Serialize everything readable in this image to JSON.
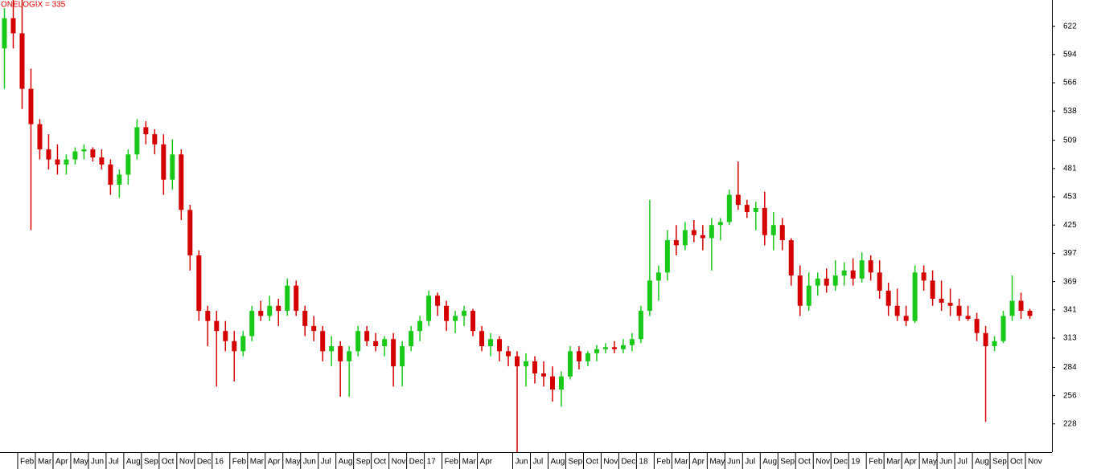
{
  "chart_data": {
    "type": "candlestick",
    "title": "ONELOGIX = 335",
    "ylim": [
      200,
      648
    ],
    "yticks": [
      228,
      256,
      284,
      313,
      341,
      369,
      397,
      425,
      453,
      481,
      509,
      538,
      566,
      594,
      622
    ],
    "up_color": "#19c919",
    "down_color": "#d40000",
    "categories": [
      null,
      null,
      "Feb",
      null,
      "Mar",
      null,
      "Apr",
      null,
      "May",
      null,
      "Jun",
      null,
      "Jul",
      null,
      "Aug",
      null,
      "Sep",
      null,
      "Oct",
      null,
      "Nov",
      null,
      "Dec",
      null,
      "16",
      null,
      "Feb",
      null,
      "Mar",
      null,
      "Apr",
      null,
      "May",
      null,
      "Jun",
      null,
      "Jul",
      null,
      "Aug",
      null,
      "Sep",
      null,
      "Oct",
      null,
      "Nov",
      null,
      "Dec",
      null,
      "17",
      null,
      "Feb",
      null,
      "Mar",
      null,
      "Apr",
      null,
      null,
      null,
      "Jun",
      null,
      "Jul",
      null,
      "Aug",
      null,
      "Sep",
      null,
      "Oct",
      null,
      "Nov",
      null,
      "Dec",
      null,
      "18",
      null,
      "Feb",
      null,
      "Mar",
      null,
      "Apr",
      null,
      "May",
      null,
      "Jun",
      null,
      "Jul",
      null,
      "Aug",
      null,
      "Sep",
      null,
      "Oct",
      null,
      "Nov",
      null,
      "Dec",
      null,
      "19",
      null,
      "Feb",
      null,
      "Mar",
      null,
      "Apr",
      null,
      "May",
      null,
      "Jun",
      null,
      "Jul",
      null,
      "Aug",
      null,
      "Sep",
      null,
      "Oct",
      null,
      "Nov"
    ],
    "ohlc": [
      [
        600,
        640,
        560,
        630
      ],
      [
        630,
        648,
        600,
        615
      ],
      [
        615,
        648,
        540,
        560
      ],
      [
        560,
        580,
        420,
        525
      ],
      [
        525,
        530,
        490,
        500
      ],
      [
        500,
        515,
        480,
        490
      ],
      [
        490,
        505,
        475,
        485
      ],
      [
        485,
        495,
        475,
        490
      ],
      [
        490,
        502,
        485,
        498
      ],
      [
        498,
        505,
        490,
        500
      ],
      [
        500,
        502,
        488,
        492
      ],
      [
        492,
        500,
        480,
        485
      ],
      [
        485,
        490,
        455,
        465
      ],
      [
        465,
        480,
        452,
        475
      ],
      [
        475,
        500,
        465,
        495
      ],
      [
        495,
        530,
        490,
        522
      ],
      [
        522,
        528,
        505,
        515
      ],
      [
        515,
        520,
        495,
        505
      ],
      [
        505,
        515,
        455,
        470
      ],
      [
        470,
        510,
        460,
        495
      ],
      [
        495,
        500,
        430,
        440
      ],
      [
        440,
        445,
        380,
        395
      ],
      [
        395,
        400,
        330,
        340
      ],
      [
        340,
        345,
        305,
        330
      ],
      [
        330,
        340,
        265,
        320
      ],
      [
        320,
        330,
        300,
        310
      ],
      [
        310,
        320,
        270,
        300
      ],
      [
        300,
        320,
        295,
        315
      ],
      [
        315,
        345,
        310,
        340
      ],
      [
        340,
        350,
        330,
        335
      ],
      [
        335,
        355,
        330,
        345
      ],
      [
        345,
        352,
        325,
        340
      ],
      [
        340,
        372,
        335,
        365
      ],
      [
        365,
        370,
        335,
        340
      ],
      [
        340,
        345,
        315,
        325
      ],
      [
        325,
        335,
        310,
        320
      ],
      [
        320,
        325,
        290,
        300
      ],
      [
        300,
        315,
        285,
        305
      ],
      [
        305,
        310,
        255,
        290
      ],
      [
        290,
        305,
        255,
        300
      ],
      [
        300,
        325,
        295,
        320
      ],
      [
        320,
        325,
        305,
        310
      ],
      [
        310,
        318,
        300,
        305
      ],
      [
        305,
        315,
        295,
        312
      ],
      [
        312,
        318,
        265,
        285
      ],
      [
        285,
        310,
        265,
        305
      ],
      [
        305,
        325,
        300,
        320
      ],
      [
        320,
        335,
        310,
        330
      ],
      [
        330,
        360,
        325,
        355
      ],
      [
        355,
        358,
        335,
        345
      ],
      [
        345,
        350,
        320,
        330
      ],
      [
        330,
        340,
        318,
        335
      ],
      [
        335,
        345,
        325,
        340
      ],
      [
        340,
        342,
        315,
        320
      ],
      [
        320,
        325,
        300,
        305
      ],
      [
        305,
        318,
        295,
        312
      ],
      [
        312,
        315,
        290,
        300
      ],
      [
        300,
        305,
        285,
        295
      ],
      [
        295,
        300,
        200,
        285
      ],
      [
        285,
        298,
        265,
        290
      ],
      [
        290,
        295,
        268,
        278
      ],
      [
        278,
        290,
        265,
        275
      ],
      [
        275,
        285,
        250,
        262
      ],
      [
        262,
        280,
        245,
        275
      ],
      [
        275,
        305,
        272,
        300
      ],
      [
        300,
        305,
        282,
        290
      ],
      [
        290,
        300,
        285,
        298
      ],
      [
        298,
        306,
        290,
        302
      ],
      [
        302,
        308,
        298,
        304
      ],
      [
        304,
        310,
        298,
        302
      ],
      [
        302,
        312,
        298,
        306
      ],
      [
        306,
        318,
        300,
        312
      ],
      [
        312,
        345,
        308,
        340
      ],
      [
        340,
        450,
        335,
        370
      ],
      [
        370,
        385,
        350,
        378
      ],
      [
        378,
        420,
        370,
        410
      ],
      [
        410,
        425,
        395,
        405
      ],
      [
        405,
        428,
        400,
        420
      ],
      [
        420,
        430,
        408,
        415
      ],
      [
        415,
        425,
        400,
        412
      ],
      [
        412,
        432,
        380,
        425
      ],
      [
        425,
        432,
        410,
        428
      ],
      [
        428,
        460,
        425,
        455
      ],
      [
        455,
        488,
        440,
        445
      ],
      [
        445,
        450,
        432,
        438
      ],
      [
        438,
        448,
        420,
        442
      ],
      [
        442,
        458,
        405,
        415
      ],
      [
        415,
        438,
        400,
        425
      ],
      [
        425,
        432,
        400,
        410
      ],
      [
        410,
        412,
        365,
        375
      ],
      [
        375,
        385,
        335,
        345
      ],
      [
        345,
        378,
        340,
        365
      ],
      [
        365,
        378,
        355,
        372
      ],
      [
        372,
        382,
        358,
        365
      ],
      [
        365,
        390,
        360,
        375
      ],
      [
        375,
        388,
        365,
        380
      ],
      [
        380,
        392,
        365,
        372
      ],
      [
        372,
        398,
        368,
        390
      ],
      [
        390,
        395,
        370,
        378
      ],
      [
        378,
        390,
        352,
        360
      ],
      [
        360,
        368,
        335,
        345
      ],
      [
        345,
        362,
        330,
        335
      ],
      [
        335,
        345,
        325,
        330
      ],
      [
        330,
        385,
        328,
        378
      ],
      [
        378,
        385,
        360,
        370
      ],
      [
        370,
        380,
        345,
        352
      ],
      [
        352,
        370,
        340,
        348
      ],
      [
        348,
        362,
        335,
        345
      ],
      [
        345,
        352,
        330,
        335
      ],
      [
        335,
        345,
        330,
        332
      ],
      [
        332,
        338,
        310,
        318
      ],
      [
        318,
        325,
        230,
        305
      ],
      [
        305,
        315,
        300,
        310
      ],
      [
        310,
        340,
        308,
        335
      ],
      [
        335,
        375,
        330,
        350
      ],
      [
        350,
        358,
        332,
        340
      ],
      [
        340,
        342,
        332,
        335
      ]
    ]
  }
}
